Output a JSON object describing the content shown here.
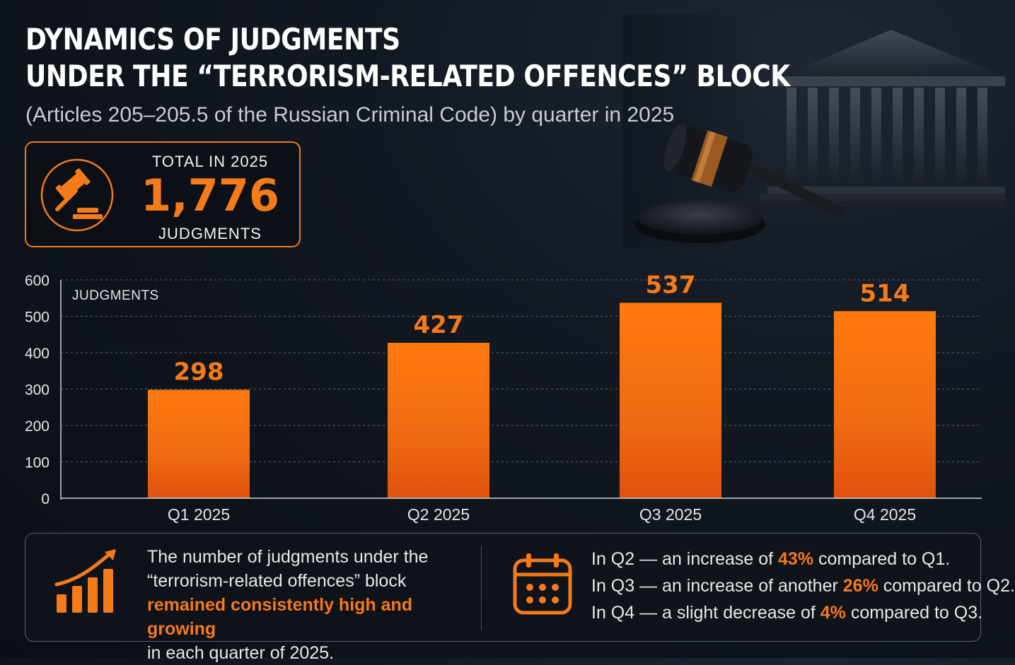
{
  "header": {
    "title_line1": "DYNAMICS OF JUDGMENTS",
    "title_line2": "UNDER THE “TERRORISM-RELATED OFFENCES” BLOCK",
    "subtitle": "(Articles 205–205.5 of the Russian Criminal Code) by quarter in 2025"
  },
  "total": {
    "label": "TOTAL IN 2025",
    "value": "1,776",
    "unit": "JUDGMENTS",
    "icon": "gavel-icon"
  },
  "chart_data": {
    "type": "bar",
    "categories": [
      "Q1 2025",
      "Q2 2025",
      "Q3 2025",
      "Q4 2025"
    ],
    "values": [
      298,
      427,
      537,
      514
    ],
    "value_labels": [
      "298",
      "427",
      "537",
      "514"
    ],
    "ylabel": "JUDGMENTS",
    "xlabel": "",
    "ylim": [
      0,
      600
    ],
    "yticks": [
      "0",
      "100",
      "200",
      "300",
      "400",
      "500",
      "600"
    ],
    "grid": true,
    "bar_color": "#f47a1a"
  },
  "summary": {
    "icon": "growth-chart-icon",
    "text_before": "The number of judgments under the “terrorism-related offences” block",
    "highlight": "remained consistently high and growing",
    "text_after": "in each quarter of 2025."
  },
  "changes": {
    "icon": "calendar-icon",
    "items": [
      {
        "prefix": "In Q2 — an increase of ",
        "pct": "43%",
        "suffix": " compared to Q1."
      },
      {
        "prefix": "In Q3 — an increase of another ",
        "pct": "26%",
        "suffix": " compared to Q2."
      },
      {
        "prefix": "In Q4 — a slight decrease of ",
        "pct": "4%",
        "suffix": " compared to Q3."
      }
    ]
  },
  "colors": {
    "accent": "#f47a1a",
    "background": "#0f141b",
    "text": "#f2f2f2"
  }
}
